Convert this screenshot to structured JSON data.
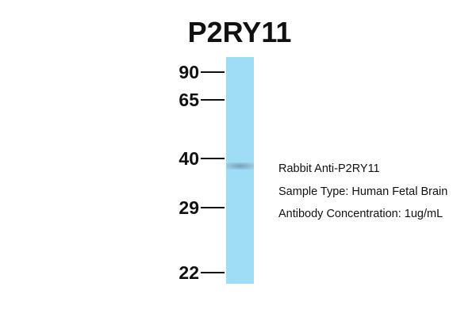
{
  "title": "P2RY11",
  "markers": [
    {
      "label": "90",
      "kda": 90
    },
    {
      "label": "65",
      "kda": 65
    },
    {
      "label": "40",
      "kda": 40
    },
    {
      "label": "29",
      "kda": 29
    },
    {
      "label": "22",
      "kda": 22
    }
  ],
  "band": {
    "approx_kda": 38
  },
  "info": [
    "Rabbit Anti-P2RY11",
    "Sample Type: Human Fetal Brain",
    "Antibody Concentration: 1ug/mL"
  ],
  "colors": {
    "lane": "#9fdcf5",
    "band": "#6e96aa"
  }
}
